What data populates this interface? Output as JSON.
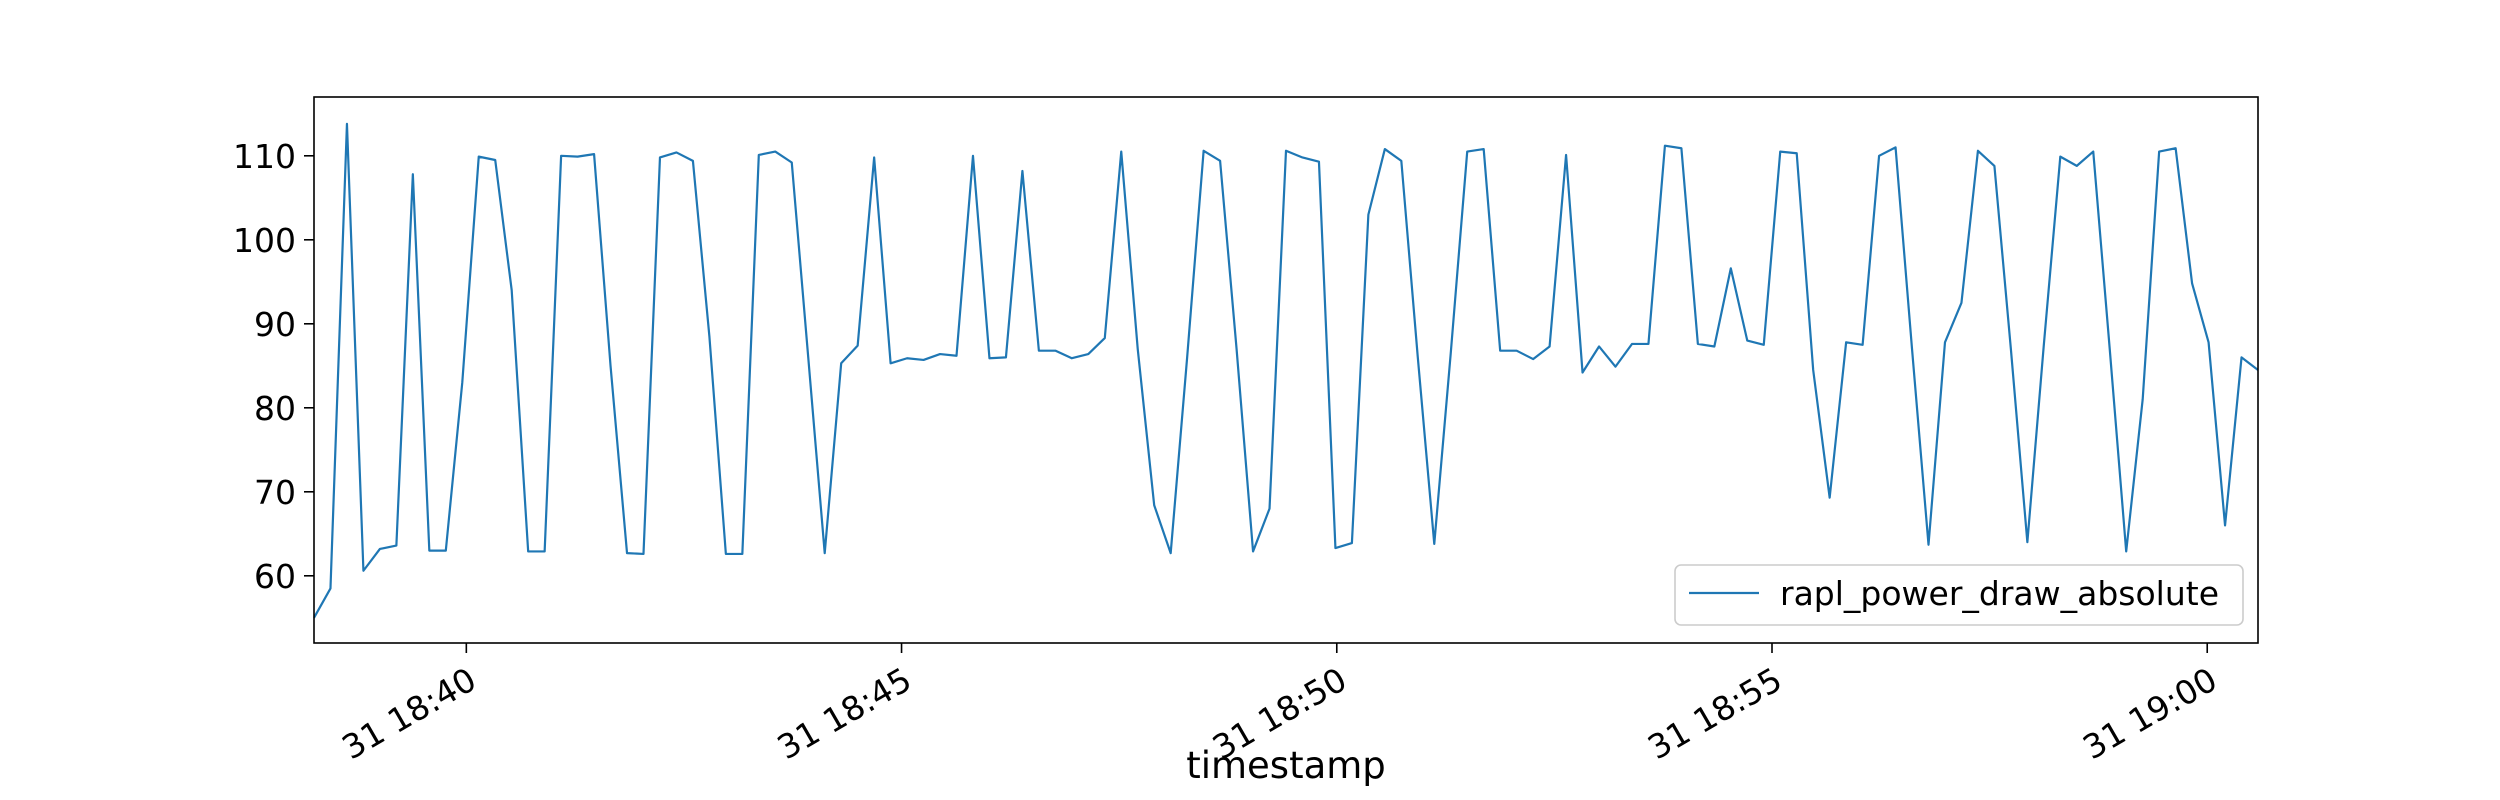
{
  "chart_data": {
    "type": "line",
    "xlabel": "timestamp",
    "ylabel": "",
    "title": "",
    "x_start": "2023-12-31T18:38:15",
    "x_end": "2023-12-31T19:00:35",
    "xlim": [
      "2023-12-31T18:38:15",
      "2023-12-31T19:00:35"
    ],
    "ylim": [
      52,
      117
    ],
    "x_ticks": [
      {
        "t": "2023-12-31T18:40:00",
        "label": "31 18:40"
      },
      {
        "t": "2023-12-31T18:45:00",
        "label": "31 18:45"
      },
      {
        "t": "2023-12-31T18:50:00",
        "label": "31 18:50"
      },
      {
        "t": "2023-12-31T18:55:00",
        "label": "31 18:55"
      },
      {
        "t": "2023-12-31T19:00:00",
        "label": "31 19:00"
      }
    ],
    "y_ticks": [
      60,
      70,
      80,
      90,
      100,
      110
    ],
    "grid": false,
    "legend_position": "lower-right",
    "series": [
      {
        "name": "rapl_power_draw_absolute",
        "color": "#1f77b4",
        "values": [
          55.0,
          58.5,
          113.8,
          60.6,
          63.2,
          63.6,
          107.8,
          63.0,
          63.0,
          83.0,
          109.9,
          109.5,
          94.0,
          62.9,
          62.9,
          110.0,
          109.9,
          110.2,
          85.0,
          62.7,
          62.6,
          109.8,
          110.4,
          109.4,
          88.5,
          62.6,
          62.6,
          110.1,
          110.5,
          109.2,
          86.0,
          62.7,
          85.3,
          87.4,
          109.8,
          85.3,
          85.9,
          85.7,
          86.4,
          86.2,
          110.0,
          85.9,
          86.0,
          108.2,
          86.8,
          86.8,
          85.9,
          86.4,
          88.3,
          110.5,
          87.0,
          68.4,
          62.7,
          86.0,
          110.6,
          109.4,
          87.0,
          62.9,
          68.0,
          110.6,
          109.8,
          109.3,
          63.3,
          63.9,
          103.0,
          110.8,
          109.4,
          86.0,
          63.8,
          86.5,
          110.5,
          110.8,
          86.8,
          86.8,
          85.8,
          87.3,
          110.1,
          84.2,
          87.3,
          84.9,
          87.6,
          87.6,
          111.2,
          110.9,
          87.6,
          87.3,
          96.6,
          88.0,
          87.5,
          110.5,
          110.3,
          84.5,
          69.3,
          87.8,
          87.5,
          110.0,
          111.0,
          87.0,
          63.7,
          87.8,
          92.5,
          110.6,
          108.8,
          87.0,
          64.0,
          87.5,
          109.9,
          108.8,
          110.5,
          87.0,
          62.9,
          81.0,
          110.5,
          110.9,
          94.8,
          87.8,
          66.0,
          86.0,
          84.5
        ]
      }
    ]
  }
}
